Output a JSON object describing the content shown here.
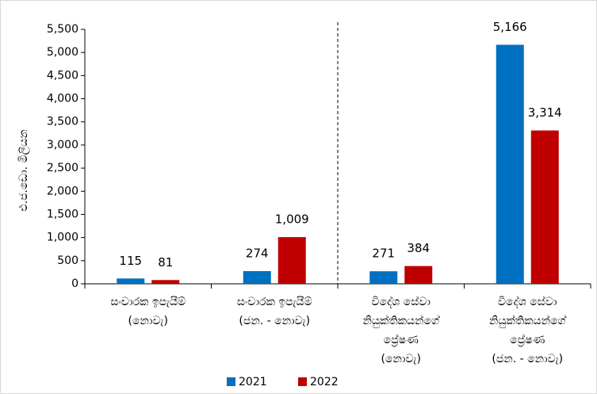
{
  "chart_data": {
    "type": "bar",
    "y_label": "එ.ජ.ඩො. මිලියන",
    "categories": [
      [
        "සංචාරක ඉපැයීම්",
        "(නොවැ)"
      ],
      [
        "සංචාරක ඉපැයීම්",
        "(ජන. - නොවැ)"
      ],
      [
        "විදේශ සේවා",
        "නියුක්තිකයන්ගේ",
        "ප්‍රේෂණ",
        "(නොවැ)"
      ],
      [
        "විදේශ සේවා",
        "නියුක්තිකයන්ගේ",
        "ප්‍රේෂණ",
        "(ජන. - නොවැ)"
      ]
    ],
    "series": [
      {
        "name": "2021",
        "color": "#0070c0",
        "values": [
          115,
          274,
          271,
          5166
        ],
        "value_labels": [
          "115",
          "274",
          "271",
          "5,166"
        ]
      },
      {
        "name": "2022",
        "color": "#c00000",
        "values": [
          81,
          1009,
          384,
          3314
        ],
        "value_labels": [
          "81",
          "1,009",
          "384",
          "3,314"
        ]
      }
    ],
    "ylim": [
      0,
      5500
    ],
    "yticks": [
      0,
      500,
      {
        "value": 1000,
        "label": "1,000"
      },
      {
        "value": 1500,
        "label": "1,500"
      },
      {
        "value": 2000,
        "label": "2,000"
      },
      {
        "value": 2500,
        "label": "2,500"
      },
      {
        "value": 3000,
        "label": "3,000"
      },
      {
        "value": 3500,
        "label": "3,500"
      },
      {
        "value": 4000,
        "label": "4,000"
      },
      {
        "value": 4500,
        "label": "4,500"
      },
      {
        "value": 5000,
        "label": "5,000"
      },
      {
        "value": 5500,
        "label": "5,500"
      }
    ],
    "legend": "bottom"
  }
}
